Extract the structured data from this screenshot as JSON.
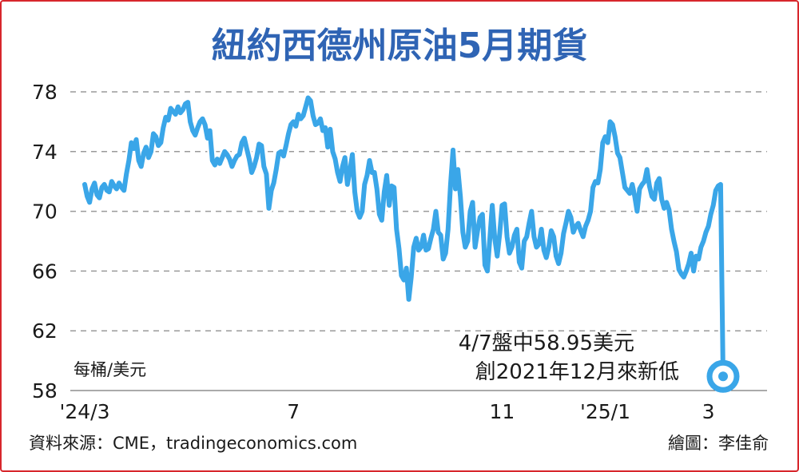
{
  "chart_data": {
    "type": "line",
    "title": "紐約西德州原油5月期貨",
    "ylabel": "每桶/美元",
    "ylim": [
      58,
      78
    ],
    "yticks": [
      "78",
      "74",
      "70",
      "66",
      "62",
      "58"
    ],
    "xticks": [
      {
        "label": "'24/3",
        "index": 0
      },
      {
        "label": "7",
        "index": 85
      },
      {
        "label": "11",
        "index": 170
      },
      {
        "label": "'25/1",
        "index": 212
      },
      {
        "label": "3",
        "index": 254
      }
    ],
    "grid": true,
    "line_color": "#3aa6e8",
    "series": [
      {
        "values": [
          71.8,
          71.0,
          70.6,
          71.5,
          71.9,
          71.1,
          70.9,
          71.6,
          71.8,
          71.4,
          71.3,
          72.0,
          71.7,
          71.5,
          71.9,
          71.6,
          71.4,
          72.5,
          73.4,
          74.6,
          74.2,
          74.8,
          73.4,
          73.0,
          73.9,
          74.3,
          73.6,
          74.0,
          75.2,
          75.0,
          74.4,
          74.6,
          75.6,
          76.3,
          76.1,
          76.9,
          76.7,
          76.5,
          77.0,
          76.6,
          76.8,
          77.2,
          77.3,
          76.0,
          75.4,
          75.1,
          75.6,
          76.0,
          76.2,
          75.8,
          74.9,
          75.4,
          73.4,
          73.1,
          73.5,
          73.2,
          73.6,
          74.0,
          73.8,
          73.5,
          73.0,
          73.4,
          73.7,
          73.8,
          74.6,
          74.9,
          74.2,
          73.5,
          72.6,
          73.0,
          73.6,
          74.5,
          74.4,
          73.0,
          72.5,
          70.2,
          71.4,
          71.9,
          72.8,
          73.9,
          74.0,
          73.7,
          74.4,
          75.2,
          75.8,
          76.0,
          75.7,
          76.5,
          76.2,
          76.4,
          77.0,
          77.6,
          77.4,
          76.4,
          75.8,
          75.9,
          76.2,
          75.4,
          75.6,
          74.3,
          75.5,
          74.0,
          73.5,
          72.6,
          72.0,
          73.0,
          73.6,
          71.8,
          72.7,
          73.8,
          71.3,
          70.0,
          69.6,
          70.0,
          71.8,
          72.4,
          73.4,
          72.6,
          72.6,
          71.5,
          69.8,
          69.4,
          71.3,
          72.4,
          70.4,
          71.7,
          71.6,
          68.8,
          67.5,
          65.7,
          65.4,
          66.2,
          64.1,
          65.6,
          67.6,
          68.2,
          67.4,
          67.6,
          68.4,
          67.4,
          67.5,
          68.2,
          68.8,
          70.0,
          68.6,
          68.4,
          66.8,
          67.2,
          68.8,
          71.8,
          74.1,
          71.5,
          72.8,
          71.0,
          68.6,
          67.6,
          68.0,
          70.0,
          70.6,
          67.6,
          68.7,
          69.6,
          69.8,
          66.4,
          66.0,
          68.2,
          70.4,
          68.2,
          67.0,
          68.5,
          70.4,
          70.5,
          68.3,
          67.2,
          67.6,
          68.4,
          68.8,
          66.6,
          66.2,
          68.0,
          68.3,
          69.2,
          70.0,
          68.3,
          67.6,
          67.8,
          68.8,
          67.4,
          66.9,
          67.6,
          68.7,
          68.3,
          67.0,
          66.5,
          67.2,
          68.5,
          69.2,
          70.0,
          69.6,
          68.6,
          69.0,
          69.2,
          68.7,
          68.3,
          69.0,
          69.4,
          70.0,
          71.6,
          72.0,
          71.9,
          72.8,
          74.6,
          75.0,
          74.6,
          76.0,
          75.8,
          75.0,
          73.9,
          73.6,
          72.6,
          71.6,
          71.4,
          71.2,
          71.8,
          71.0,
          70.0,
          71.5,
          71.8,
          72.0,
          72.8,
          71.7,
          71.0,
          70.8,
          71.9,
          72.2,
          70.8,
          70.2,
          70.6,
          70.1,
          68.8,
          68.0,
          67.3,
          66.1,
          65.8,
          65.6,
          66.0,
          66.5,
          67.2,
          66.0,
          67.0,
          66.8,
          67.6,
          68.0,
          68.6,
          69.0,
          69.8,
          70.4,
          71.4,
          71.7,
          71.8,
          58.95
        ]
      }
    ],
    "annotation_lines": [
      "4/7盤中58.95美元",
      "創2021年12月來新低"
    ],
    "source": "資料來源：CME，tradingeconomics.com",
    "credit": "繪圖：李佳俞"
  }
}
